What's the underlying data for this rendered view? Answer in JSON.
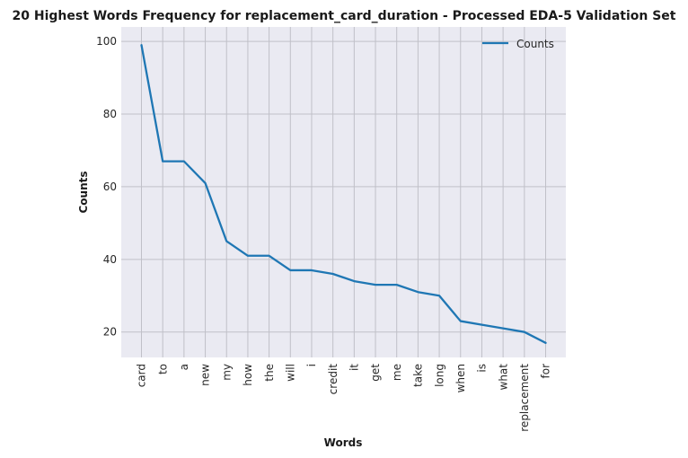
{
  "chart_data": {
    "type": "line",
    "title": "20 Highest Words Frequency for replacement_card_duration - Processed EDA-5 Validation Set",
    "xlabel": "Words",
    "ylabel": "Counts",
    "categories": [
      "card",
      "to",
      "a",
      "new",
      "my",
      "how",
      "the",
      "will",
      "i",
      "credit",
      "it",
      "get",
      "me",
      "take",
      "long",
      "when",
      "is",
      "what",
      "replacement",
      "for"
    ],
    "series": [
      {
        "name": "Counts",
        "values": [
          99,
          67,
          67,
          61,
          45,
          41,
          41,
          37,
          37,
          36,
          34,
          33,
          33,
          31,
          30,
          23,
          22,
          21,
          20,
          17
        ]
      }
    ],
    "ylim": [
      13,
      104
    ],
    "yticks": [
      20,
      40,
      60,
      80,
      100
    ],
    "grid": true,
    "legend_position": "upper right",
    "colors": {
      "line": "#1f77b4",
      "plot_bg": "#eaeaf2",
      "grid": "#c0c0c8"
    }
  }
}
